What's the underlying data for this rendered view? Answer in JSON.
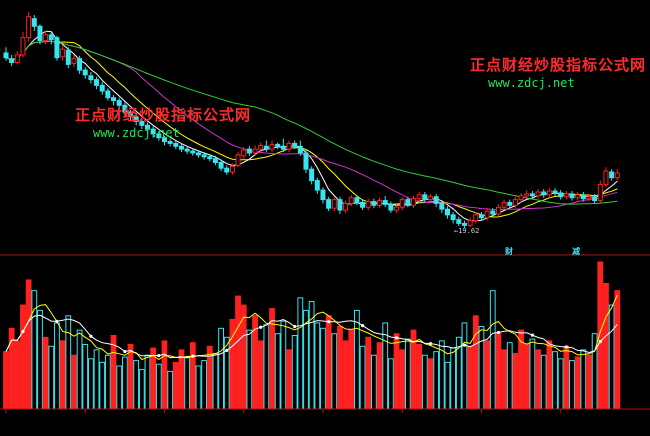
{
  "watermarks": [
    {
      "title": "正点财经炒股指标公式网",
      "url": "www.zdcj.net"
    },
    {
      "title": "正点财经炒股指标公式网",
      "url": "www.zdcj.net"
    }
  ],
  "price_panel": {
    "low_marker": "19.62",
    "signals": [
      "财",
      "减"
    ]
  },
  "colors": {
    "background": "#000000",
    "up": "#ff2020",
    "down": "#36e5f0",
    "ma_short": "#ffffff",
    "ma_mid": "#ffff00",
    "ma_long1": "#cc33cc",
    "ma_long2": "#33cc33",
    "divider": "#b01010"
  },
  "chart_data": [
    {
      "type": "candlestick",
      "title": "",
      "candles": [
        [
          38.0,
          37.5,
          38.6,
          37.2
        ],
        [
          37.4,
          37.0,
          37.8,
          36.6
        ],
        [
          37.0,
          37.8,
          38.2,
          36.8
        ],
        [
          37.8,
          39.6,
          40.2,
          37.5
        ],
        [
          39.6,
          41.8,
          42.3,
          39.2
        ],
        [
          41.6,
          40.8,
          42.0,
          40.3
        ],
        [
          40.8,
          39.3,
          41.0,
          38.9
        ],
        [
          39.3,
          39.9,
          40.3,
          38.9
        ],
        [
          39.9,
          39.4,
          40.3,
          38.9
        ],
        [
          39.6,
          37.5,
          39.8,
          37.2
        ],
        [
          37.6,
          38.4,
          38.8,
          37.2
        ],
        [
          38.3,
          36.8,
          38.6,
          36.4
        ],
        [
          36.9,
          37.4,
          37.8,
          36.5
        ],
        [
          37.4,
          36.2,
          37.7,
          35.8
        ],
        [
          36.2,
          35.7,
          36.5,
          35.3
        ],
        [
          35.6,
          35.2,
          36.0,
          34.8
        ],
        [
          35.2,
          34.6,
          35.5,
          34.2
        ],
        [
          34.6,
          34.0,
          35.0,
          33.6
        ],
        [
          34.0,
          33.3,
          34.3,
          33.0
        ],
        [
          33.3,
          33.0,
          33.6,
          32.5
        ],
        [
          33.0,
          32.5,
          33.3,
          32.1
        ],
        [
          32.5,
          31.8,
          32.8,
          31.4
        ],
        [
          31.8,
          31.3,
          32.0,
          30.9
        ],
        [
          31.3,
          30.8,
          31.6,
          30.4
        ],
        [
          30.8,
          30.4,
          31.1,
          30.0
        ],
        [
          30.4,
          30.0,
          30.7,
          29.6
        ],
        [
          30.0,
          29.5,
          30.3,
          29.1
        ],
        [
          29.5,
          29.1,
          29.8,
          28.8
        ],
        [
          29.1,
          28.7,
          29.3,
          28.3
        ],
        [
          28.7,
          28.5,
          29.0,
          28.2
        ],
        [
          28.5,
          28.2,
          28.8,
          27.9
        ],
        [
          28.2,
          27.9,
          28.5,
          27.6
        ],
        [
          27.9,
          27.7,
          28.2,
          27.4
        ],
        [
          27.7,
          27.5,
          28.0,
          27.2
        ],
        [
          27.5,
          27.3,
          27.8,
          27.0
        ],
        [
          27.3,
          27.1,
          27.6,
          26.8
        ],
        [
          27.1,
          26.9,
          27.4,
          26.6
        ],
        [
          26.9,
          26.5,
          27.2,
          26.2
        ],
        [
          26.5,
          25.9,
          26.8,
          25.6
        ],
        [
          25.9,
          25.5,
          26.2,
          25.2
        ],
        [
          25.5,
          26.1,
          26.4,
          25.2
        ],
        [
          26.2,
          27.3,
          27.6,
          26.0
        ],
        [
          27.2,
          27.8,
          28.1,
          26.9
        ],
        [
          27.9,
          27.5,
          28.2,
          27.2
        ],
        [
          27.5,
          27.9,
          28.3,
          27.2
        ],
        [
          27.9,
          28.3,
          28.6,
          27.6
        ],
        [
          28.2,
          27.9,
          28.8,
          27.6
        ],
        [
          27.9,
          28.4,
          28.8,
          27.6
        ],
        [
          28.4,
          28.2,
          28.6,
          27.9
        ],
        [
          28.2,
          27.9,
          29.0,
          27.6
        ],
        [
          27.9,
          28.5,
          28.8,
          27.6
        ],
        [
          28.5,
          28.2,
          28.8,
          27.9
        ],
        [
          28.2,
          27.5,
          28.8,
          27.2
        ],
        [
          27.5,
          25.8,
          27.8,
          25.4
        ],
        [
          25.8,
          24.6,
          26.1,
          24.2
        ],
        [
          24.6,
          23.6,
          24.9,
          23.2
        ],
        [
          23.6,
          22.6,
          23.9,
          22.2
        ],
        [
          22.6,
          21.7,
          22.9,
          21.4
        ],
        [
          21.7,
          22.6,
          22.9,
          21.4
        ],
        [
          22.6,
          21.5,
          22.9,
          21.1
        ],
        [
          21.5,
          22.2,
          22.5,
          21.2
        ],
        [
          22.2,
          22.8,
          23.1,
          21.9
        ],
        [
          22.8,
          22.3,
          23.0,
          22.0
        ],
        [
          22.3,
          21.8,
          22.6,
          21.5
        ],
        [
          21.8,
          22.4,
          22.7,
          21.5
        ],
        [
          22.4,
          22.0,
          22.7,
          21.7
        ],
        [
          22.0,
          22.5,
          22.8,
          21.7
        ],
        [
          22.5,
          22.1,
          23.0,
          21.8
        ],
        [
          22.1,
          21.5,
          22.4,
          21.2
        ],
        [
          21.5,
          21.8,
          22.1,
          21.2
        ],
        [
          21.8,
          22.6,
          22.9,
          21.5
        ],
        [
          22.6,
          22.0,
          22.9,
          21.8
        ],
        [
          22.0,
          22.7,
          23.0,
          21.7
        ],
        [
          22.7,
          23.1,
          23.4,
          22.4
        ],
        [
          23.1,
          22.6,
          23.4,
          22.3
        ],
        [
          22.6,
          22.9,
          23.2,
          22.3
        ],
        [
          22.9,
          22.2,
          23.2,
          21.8
        ],
        [
          22.2,
          21.6,
          22.5,
          21.2
        ],
        [
          21.6,
          21.0,
          21.9,
          20.6
        ],
        [
          21.0,
          20.5,
          21.3,
          20.1
        ],
        [
          20.5,
          20.1,
          20.8,
          19.8
        ],
        [
          20.1,
          19.9,
          20.4,
          19.62
        ],
        [
          19.9,
          20.4,
          20.7,
          19.7
        ],
        [
          20.4,
          21.0,
          21.3,
          20.1
        ],
        [
          21.0,
          20.7,
          21.3,
          20.4
        ],
        [
          20.7,
          21.4,
          21.7,
          20.4
        ],
        [
          21.4,
          21.1,
          21.7,
          20.8
        ],
        [
          21.1,
          21.8,
          22.1,
          20.8
        ],
        [
          21.8,
          22.3,
          22.6,
          21.5
        ],
        [
          22.3,
          22.0,
          22.6,
          21.7
        ],
        [
          22.0,
          22.6,
          22.9,
          21.7
        ],
        [
          22.6,
          23.0,
          23.3,
          22.3
        ],
        [
          23.0,
          23.2,
          23.6,
          22.7
        ],
        [
          23.2,
          23.0,
          23.5,
          22.7
        ],
        [
          23.0,
          23.4,
          23.7,
          22.7
        ],
        [
          23.4,
          23.1,
          23.7,
          22.8
        ],
        [
          23.1,
          23.5,
          23.8,
          22.8
        ],
        [
          23.5,
          23.3,
          23.8,
          23.0
        ],
        [
          23.3,
          22.9,
          23.6,
          22.6
        ],
        [
          22.9,
          23.2,
          23.5,
          22.6
        ],
        [
          23.2,
          22.8,
          23.5,
          22.5
        ],
        [
          22.8,
          23.1,
          23.4,
          22.5
        ],
        [
          23.1,
          22.7,
          23.4,
          22.4
        ],
        [
          22.7,
          22.9,
          23.2,
          22.4
        ],
        [
          22.9,
          22.5,
          23.2,
          22.2
        ],
        [
          22.5,
          24.2,
          24.6,
          22.3
        ],
        [
          24.2,
          25.6,
          26.0,
          23.9
        ],
        [
          25.5,
          24.9,
          25.8,
          24.6
        ],
        [
          24.9,
          25.4,
          25.8,
          24.6
        ]
      ],
      "ma_overlays": [
        "ma_short",
        "ma_mid",
        "ma_long1",
        "ma_long2"
      ]
    },
    {
      "type": "bar",
      "title": "",
      "volumes": [
        32,
        45,
        38,
        58,
        72,
        66,
        55,
        40,
        35,
        48,
        38,
        52,
        30,
        44,
        36,
        28,
        33,
        26,
        30,
        41,
        24,
        29,
        36,
        27,
        22,
        30,
        34,
        25,
        38,
        21,
        26,
        33,
        29,
        37,
        24,
        27,
        35,
        31,
        45,
        40,
        50,
        63,
        58,
        44,
        52,
        38,
        47,
        56,
        42,
        49,
        33,
        41,
        62,
        55,
        60,
        48,
        45,
        52,
        42,
        46,
        38,
        44,
        55,
        35,
        40,
        30,
        37,
        48,
        28,
        42,
        33,
        39,
        44,
        36,
        30,
        28,
        32,
        38,
        26,
        34,
        40,
        48,
        35,
        52,
        46,
        38,
        66,
        42,
        33,
        37,
        31,
        44,
        36,
        39,
        33,
        30,
        38,
        32,
        28,
        35,
        27,
        29,
        33,
        30,
        42,
        82,
        70,
        58,
        66
      ],
      "volume_up_flags": [
        1,
        1,
        1,
        1,
        1,
        0,
        0,
        1,
        0,
        0,
        1,
        0,
        1,
        0,
        0,
        0,
        0,
        0,
        0,
        1,
        0,
        0,
        1,
        0,
        0,
        0,
        1,
        0,
        1,
        0,
        1,
        1,
        0,
        1,
        0,
        0,
        1,
        0,
        0,
        0,
        1,
        1,
        1,
        0,
        1,
        1,
        0,
        1,
        0,
        0,
        1,
        0,
        0,
        0,
        0,
        0,
        0,
        1,
        0,
        1,
        1,
        1,
        0,
        0,
        1,
        0,
        1,
        0,
        0,
        1,
        1,
        0,
        1,
        1,
        0,
        1,
        0,
        0,
        0,
        0,
        0,
        0,
        1,
        1,
        0,
        1,
        0,
        1,
        1,
        0,
        1,
        1,
        1,
        0,
        1,
        0,
        1,
        0,
        0,
        1,
        0,
        1,
        0,
        1,
        0,
        1,
        1,
        0,
        1
      ]
    }
  ]
}
